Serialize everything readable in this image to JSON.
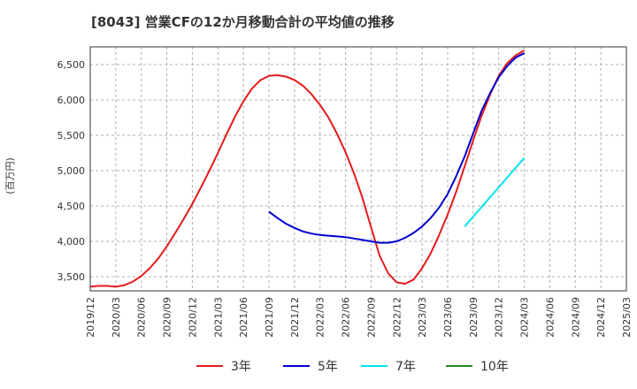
{
  "chart_data": {
    "type": "line",
    "title": "[8043]  営業CFの12か月移動合計の平均値の推移",
    "ylabel": "(百万円)",
    "xlabel": "",
    "ylim": [
      3300,
      6750
    ],
    "yticks": [
      3500,
      4000,
      4500,
      5000,
      5500,
      6000,
      6500
    ],
    "ytick_labels": [
      "3,500",
      "4,000",
      "4,500",
      "5,000",
      "5,500",
      "6,000",
      "6,500"
    ],
    "xlim": [
      "2019-12",
      "2025-03"
    ],
    "xtick_labels": [
      "2019/12",
      "2020/03",
      "2020/06",
      "2020/09",
      "2020/12",
      "2021/03",
      "2021/06",
      "2021/09",
      "2021/12",
      "2022/03",
      "2022/06",
      "2022/09",
      "2022/12",
      "2023/03",
      "2023/06",
      "2023/09",
      "2023/12",
      "2024/03",
      "2024/06",
      "2024/09",
      "2024/12",
      "2025/03"
    ],
    "grid": "dashed",
    "legend_position": "bottom",
    "series": [
      {
        "name": "3年",
        "color": "#e41a1c",
        "x": [
          "2019-12",
          "2020-01",
          "2020-02",
          "2020-03",
          "2020-04",
          "2020-05",
          "2020-06",
          "2020-07",
          "2020-08",
          "2020-09",
          "2020-10",
          "2020-11",
          "2020-12",
          "2021-01",
          "2021-02",
          "2021-03",
          "2021-04",
          "2021-05",
          "2021-06",
          "2021-07",
          "2021-08",
          "2021-09",
          "2021-10",
          "2021-11",
          "2021-12",
          "2022-01",
          "2022-02",
          "2022-03",
          "2022-04",
          "2022-05",
          "2022-06",
          "2022-07",
          "2022-08",
          "2022-09",
          "2022-10",
          "2022-11",
          "2022-12",
          "2023-01",
          "2023-02",
          "2023-03",
          "2023-04",
          "2023-05",
          "2023-06",
          "2023-07",
          "2023-08",
          "2023-09",
          "2023-10",
          "2023-11",
          "2023-12",
          "2024-01",
          "2024-02",
          "2024-03"
        ],
        "values": [
          3360,
          3370,
          3370,
          3360,
          3380,
          3430,
          3510,
          3620,
          3760,
          3930,
          4120,
          4320,
          4530,
          4760,
          5000,
          5250,
          5510,
          5760,
          5980,
          6160,
          6280,
          6340,
          6350,
          6330,
          6280,
          6200,
          6080,
          5930,
          5750,
          5520,
          5260,
          4960,
          4610,
          4200,
          3800,
          3550,
          3420,
          3400,
          3460,
          3620,
          3830,
          4090,
          4380,
          4700,
          5060,
          5430,
          5780,
          6080,
          6340,
          6520,
          6630,
          6700
        ]
      },
      {
        "name": "5年",
        "color": "#0000cd",
        "x": [
          "2021-09",
          "2021-10",
          "2021-11",
          "2021-12",
          "2022-01",
          "2022-02",
          "2022-03",
          "2022-04",
          "2022-05",
          "2022-06",
          "2022-07",
          "2022-08",
          "2022-09",
          "2022-10",
          "2022-11",
          "2022-12",
          "2023-01",
          "2023-02",
          "2023-03",
          "2023-04",
          "2023-05",
          "2023-06",
          "2023-07",
          "2023-08",
          "2023-09",
          "2023-10",
          "2023-11",
          "2023-12",
          "2024-01",
          "2024-02",
          "2024-03"
        ],
        "values": [
          4420,
          4330,
          4250,
          4190,
          4140,
          4110,
          4090,
          4080,
          4070,
          4060,
          4040,
          4020,
          4000,
          3980,
          3980,
          4000,
          4050,
          4120,
          4210,
          4330,
          4480,
          4670,
          4920,
          5200,
          5530,
          5850,
          6100,
          6320,
          6480,
          6600,
          6660
        ]
      },
      {
        "name": "7年",
        "color": "#00e5ee",
        "x": [
          "2023-08",
          "2024-03"
        ],
        "values": [
          4210,
          5180
        ]
      },
      {
        "name": "10年",
        "color": "#228b22",
        "x": [],
        "values": []
      }
    ]
  }
}
